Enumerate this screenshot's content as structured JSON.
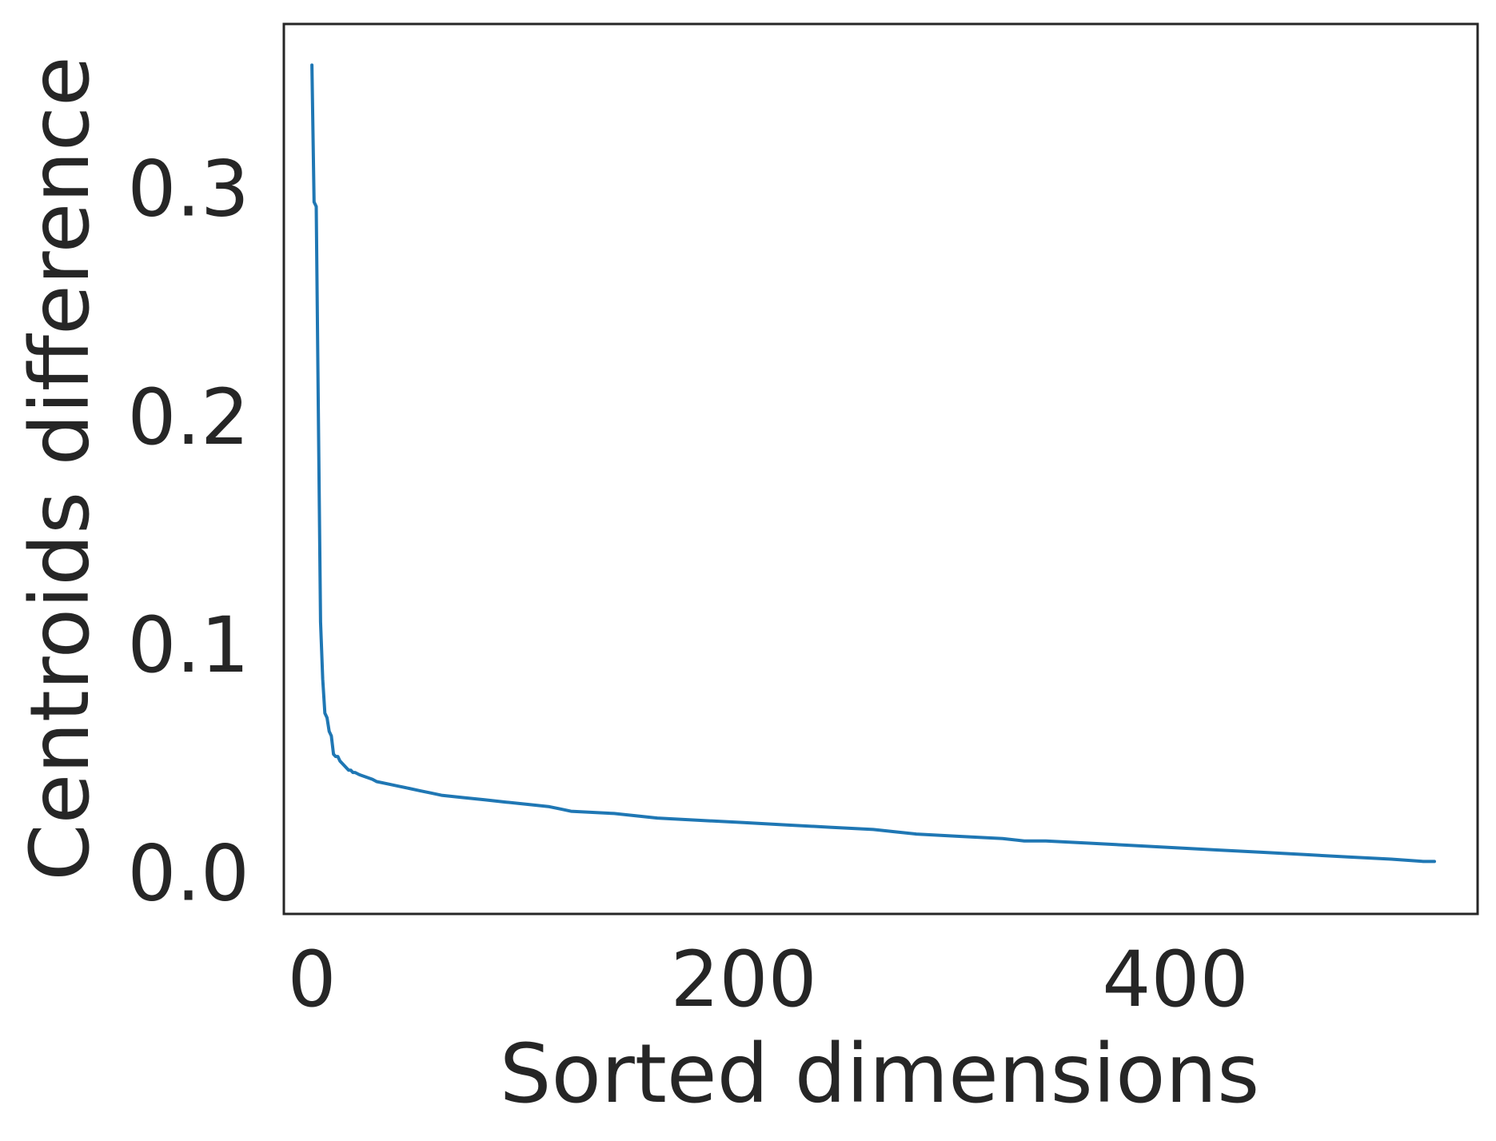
{
  "chart_data": {
    "type": "line",
    "title": "",
    "xlabel": "Sorted dimensions",
    "ylabel": "Centroids difference",
    "xlim": [
      -13,
      540
    ],
    "ylim": [
      -0.018,
      0.372
    ],
    "xticks": [
      0,
      200,
      400
    ],
    "xtick_labels": [
      "0",
      "200",
      "400"
    ],
    "yticks": [
      0.0,
      0.1,
      0.2,
      0.3
    ],
    "ytick_labels": [
      "0.0",
      "0.1",
      "0.2",
      "0.3"
    ],
    "grid": false,
    "legend": "none",
    "series": [
      {
        "color": "#1f77b4",
        "x": [
          0,
          1,
          2,
          3,
          4,
          5,
          6,
          7,
          8,
          9,
          10,
          11,
          12,
          13,
          14,
          15,
          16,
          17,
          18,
          19,
          20,
          22,
          25,
          28,
          30,
          35,
          40,
          45,
          50,
          55,
          60,
          70,
          80,
          90,
          100,
          110,
          115,
          120,
          140,
          150,
          160,
          180,
          200,
          220,
          240,
          260,
          270,
          280,
          300,
          320,
          330,
          340,
          360,
          380,
          400,
          420,
          440,
          460,
          480,
          500,
          520,
          515
        ],
        "y": [
          0.354,
          0.294,
          0.292,
          0.2,
          0.11,
          0.085,
          0.07,
          0.068,
          0.062,
          0.06,
          0.052,
          0.051,
          0.051,
          0.049,
          0.048,
          0.047,
          0.046,
          0.045,
          0.045,
          0.044,
          0.044,
          0.043,
          0.042,
          0.041,
          0.04,
          0.039,
          0.038,
          0.037,
          0.036,
          0.035,
          0.034,
          0.033,
          0.032,
          0.031,
          0.03,
          0.029,
          0.028,
          0.027,
          0.026,
          0.025,
          0.024,
          0.023,
          0.022,
          0.021,
          0.02,
          0.019,
          0.018,
          0.017,
          0.016,
          0.015,
          0.014,
          0.014,
          0.013,
          0.012,
          0.011,
          0.01,
          0.009,
          0.008,
          0.007,
          0.006,
          0.005,
          0.005
        ]
      }
    ]
  }
}
